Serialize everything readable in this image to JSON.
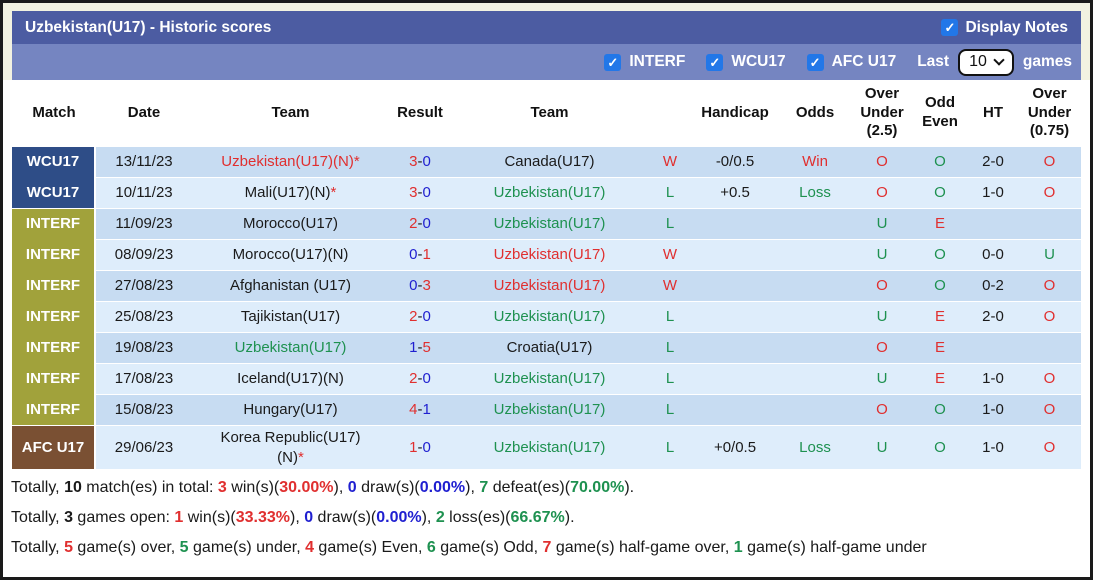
{
  "glyphs": {
    "check": "✓"
  },
  "colors": {
    "wcu17_bg": "#2e4d87",
    "interf_bg": "#a1a23b",
    "afc_bg": "#7a5033",
    "title_bar_bg": "#4c5ca2",
    "filter_bar_bg": "#7585c1",
    "row_dark": "#c7dcf2",
    "row_light": "#deedfb",
    "red": "#e02f2f",
    "green": "#1e9150",
    "blue": "#1f1fd0"
  },
  "title_bar": {
    "title": "Uzbekistan(U17) - Historic scores",
    "display_notes_label": "Display Notes",
    "display_notes_checked": true
  },
  "filter_bar": {
    "filters": [
      {
        "label": "INTERF",
        "checked": true
      },
      {
        "label": "WCU17",
        "checked": true
      },
      {
        "label": "AFC U17",
        "checked": true
      }
    ],
    "last_label": "Last",
    "games_count": "10",
    "games_label": "games"
  },
  "table": {
    "headers": [
      "Match",
      "Date",
      "Team",
      "Result",
      "Team",
      "",
      "Handicap",
      "Odds",
      "Over Under (2.5)",
      "Odd Even",
      "HT",
      "Over Under (0.75)"
    ],
    "rows": [
      {
        "competition": "WCU17",
        "competition_color": "#2e4d87",
        "group_start": true,
        "shade": "dark",
        "date": "13/11/23",
        "home": {
          "lines": [
            "Uzbekistan(U17)(N)"
          ],
          "color": "red",
          "star": true
        },
        "result": {
          "home": "3",
          "away": "0",
          "home_color": "red",
          "away_color": "blue"
        },
        "away": {
          "lines": [
            "Canada(U17)"
          ],
          "color": "black",
          "star": false
        },
        "wl": {
          "t": "W",
          "color": "red"
        },
        "handicap": "-0/0.5",
        "odds": {
          "t": "Win",
          "color": "red"
        },
        "over_under_25": {
          "t": "O",
          "color": "red"
        },
        "odd_even": {
          "t": "O",
          "color": "green"
        },
        "ht": "2-0",
        "over_under_075": {
          "t": "O",
          "color": "red"
        }
      },
      {
        "competition": "WCU17",
        "competition_color": "#2e4d87",
        "group_start": false,
        "shade": "light",
        "date": "10/11/23",
        "home": {
          "lines": [
            "Mali(U17)(N)"
          ],
          "color": "black",
          "star": true
        },
        "result": {
          "home": "3",
          "away": "0",
          "home_color": "red",
          "away_color": "blue"
        },
        "away": {
          "lines": [
            "Uzbekistan(U17)"
          ],
          "color": "green",
          "star": false
        },
        "wl": {
          "t": "L",
          "color": "green"
        },
        "handicap": "+0.5",
        "odds": {
          "t": "Loss",
          "color": "green"
        },
        "over_under_25": {
          "t": "O",
          "color": "red"
        },
        "odd_even": {
          "t": "O",
          "color": "green"
        },
        "ht": "1-0",
        "over_under_075": {
          "t": "O",
          "color": "red"
        }
      },
      {
        "competition": "INTERF",
        "competition_color": "#a1a23b",
        "group_start": true,
        "shade": "dark",
        "date": "11/09/23",
        "home": {
          "lines": [
            "Morocco(U17)"
          ],
          "color": "black",
          "star": false
        },
        "result": {
          "home": "2",
          "away": "0",
          "home_color": "red",
          "away_color": "blue"
        },
        "away": {
          "lines": [
            "Uzbekistan(U17)"
          ],
          "color": "green",
          "star": false
        },
        "wl": {
          "t": "L",
          "color": "green"
        },
        "handicap": "",
        "odds": {
          "t": "",
          "color": "black"
        },
        "over_under_25": {
          "t": "U",
          "color": "green"
        },
        "odd_even": {
          "t": "E",
          "color": "red"
        },
        "ht": "",
        "over_under_075": {
          "t": "",
          "color": "black"
        }
      },
      {
        "competition": "INTERF",
        "competition_color": "#a1a23b",
        "group_start": false,
        "shade": "light",
        "date": "08/09/23",
        "home": {
          "lines": [
            "Morocco(U17)(N)"
          ],
          "color": "black",
          "star": false
        },
        "result": {
          "home": "0",
          "away": "1",
          "home_color": "blue",
          "away_color": "red"
        },
        "away": {
          "lines": [
            "Uzbekistan(U17)"
          ],
          "color": "red",
          "star": false
        },
        "wl": {
          "t": "W",
          "color": "red"
        },
        "handicap": "",
        "odds": {
          "t": "",
          "color": "black"
        },
        "over_under_25": {
          "t": "U",
          "color": "green"
        },
        "odd_even": {
          "t": "O",
          "color": "green"
        },
        "ht": "0-0",
        "over_under_075": {
          "t": "U",
          "color": "green"
        }
      },
      {
        "competition": "INTERF",
        "competition_color": "#a1a23b",
        "group_start": false,
        "shade": "dark",
        "date": "27/08/23",
        "home": {
          "lines": [
            "Afghanistan (U17)"
          ],
          "color": "black",
          "star": false
        },
        "result": {
          "home": "0",
          "away": "3",
          "home_color": "blue",
          "away_color": "red"
        },
        "away": {
          "lines": [
            "Uzbekistan(U17)"
          ],
          "color": "red",
          "star": false
        },
        "wl": {
          "t": "W",
          "color": "red"
        },
        "handicap": "",
        "odds": {
          "t": "",
          "color": "black"
        },
        "over_under_25": {
          "t": "O",
          "color": "red"
        },
        "odd_even": {
          "t": "O",
          "color": "green"
        },
        "ht": "0-2",
        "over_under_075": {
          "t": "O",
          "color": "red"
        }
      },
      {
        "competition": "INTERF",
        "competition_color": "#a1a23b",
        "group_start": false,
        "shade": "light",
        "date": "25/08/23",
        "home": {
          "lines": [
            "Tajikistan(U17)"
          ],
          "color": "black",
          "star": false
        },
        "result": {
          "home": "2",
          "away": "0",
          "home_color": "red",
          "away_color": "blue"
        },
        "away": {
          "lines": [
            "Uzbekistan(U17)"
          ],
          "color": "green",
          "star": false
        },
        "wl": {
          "t": "L",
          "color": "green"
        },
        "handicap": "",
        "odds": {
          "t": "",
          "color": "black"
        },
        "over_under_25": {
          "t": "U",
          "color": "green"
        },
        "odd_even": {
          "t": "E",
          "color": "red"
        },
        "ht": "2-0",
        "over_under_075": {
          "t": "O",
          "color": "red"
        }
      },
      {
        "competition": "INTERF",
        "competition_color": "#a1a23b",
        "group_start": false,
        "shade": "dark",
        "date": "19/08/23",
        "home": {
          "lines": [
            "Uzbekistan(U17)"
          ],
          "color": "green",
          "star": false
        },
        "result": {
          "home": "1",
          "away": "5",
          "home_color": "blue",
          "away_color": "red"
        },
        "away": {
          "lines": [
            "Croatia(U17)"
          ],
          "color": "black",
          "star": false
        },
        "wl": {
          "t": "L",
          "color": "green"
        },
        "handicap": "",
        "odds": {
          "t": "",
          "color": "black"
        },
        "over_under_25": {
          "t": "O",
          "color": "red"
        },
        "odd_even": {
          "t": "E",
          "color": "red"
        },
        "ht": "",
        "over_under_075": {
          "t": "",
          "color": "black"
        }
      },
      {
        "competition": "INTERF",
        "competition_color": "#a1a23b",
        "group_start": false,
        "shade": "light",
        "date": "17/08/23",
        "home": {
          "lines": [
            "Iceland(U17)(N)"
          ],
          "color": "black",
          "star": false
        },
        "result": {
          "home": "2",
          "away": "0",
          "home_color": "red",
          "away_color": "blue"
        },
        "away": {
          "lines": [
            "Uzbekistan(U17)"
          ],
          "color": "green",
          "star": false
        },
        "wl": {
          "t": "L",
          "color": "green"
        },
        "handicap": "",
        "odds": {
          "t": "",
          "color": "black"
        },
        "over_under_25": {
          "t": "U",
          "color": "green"
        },
        "odd_even": {
          "t": "E",
          "color": "red"
        },
        "ht": "1-0",
        "over_under_075": {
          "t": "O",
          "color": "red"
        }
      },
      {
        "competition": "INTERF",
        "competition_color": "#a1a23b",
        "group_start": false,
        "shade": "dark",
        "date": "15/08/23",
        "home": {
          "lines": [
            "Hungary(U17)"
          ],
          "color": "black",
          "star": false
        },
        "result": {
          "home": "4",
          "away": "1",
          "home_color": "red",
          "away_color": "blue"
        },
        "away": {
          "lines": [
            "Uzbekistan(U17)"
          ],
          "color": "green",
          "star": false
        },
        "wl": {
          "t": "L",
          "color": "green"
        },
        "handicap": "",
        "odds": {
          "t": "",
          "color": "black"
        },
        "over_under_25": {
          "t": "O",
          "color": "red"
        },
        "odd_even": {
          "t": "O",
          "color": "green"
        },
        "ht": "1-0",
        "over_under_075": {
          "t": "O",
          "color": "red"
        }
      },
      {
        "competition": "AFC U17",
        "competition_color": "#7a5033",
        "group_start": true,
        "shade": "light",
        "date": "29/06/23",
        "home": {
          "lines": [
            "Korea Republic(U17)",
            "(N)"
          ],
          "color": "black",
          "star": true
        },
        "result": {
          "home": "1",
          "away": "0",
          "home_color": "red",
          "away_color": "blue"
        },
        "away": {
          "lines": [
            "Uzbekistan(U17)"
          ],
          "color": "green",
          "star": false
        },
        "wl": {
          "t": "L",
          "color": "green"
        },
        "handicap": "+0/0.5",
        "odds": {
          "t": "Loss",
          "color": "green"
        },
        "over_under_25": {
          "t": "U",
          "color": "green"
        },
        "odd_even": {
          "t": "O",
          "color": "green"
        },
        "ht": "1-0",
        "over_under_075": {
          "t": "O",
          "color": "red"
        }
      }
    ]
  },
  "footer": {
    "lines": [
      [
        {
          "t": "Totally, "
        },
        {
          "t": "10",
          "b": true
        },
        {
          "t": " match(es) in total: "
        },
        {
          "t": "3",
          "b": true,
          "c": "red"
        },
        {
          "t": " win(s)("
        },
        {
          "t": "30.00%",
          "b": true,
          "c": "red"
        },
        {
          "t": "), "
        },
        {
          "t": "0",
          "b": true,
          "c": "blue"
        },
        {
          "t": " draw(s)("
        },
        {
          "t": "0.00%",
          "b": true,
          "c": "blue"
        },
        {
          "t": "), "
        },
        {
          "t": "7",
          "b": true,
          "c": "green"
        },
        {
          "t": " defeat(es)("
        },
        {
          "t": "70.00%",
          "b": true,
          "c": "green"
        },
        {
          "t": ")."
        }
      ],
      [
        {
          "t": "Totally, "
        },
        {
          "t": "3",
          "b": true
        },
        {
          "t": " games open: "
        },
        {
          "t": "1",
          "b": true,
          "c": "red"
        },
        {
          "t": " win(s)("
        },
        {
          "t": "33.33%",
          "b": true,
          "c": "red"
        },
        {
          "t": "), "
        },
        {
          "t": "0",
          "b": true,
          "c": "blue"
        },
        {
          "t": " draw(s)("
        },
        {
          "t": "0.00%",
          "b": true,
          "c": "blue"
        },
        {
          "t": "), "
        },
        {
          "t": "2",
          "b": true,
          "c": "green"
        },
        {
          "t": " loss(es)("
        },
        {
          "t": "66.67%",
          "b": true,
          "c": "green"
        },
        {
          "t": ")."
        }
      ],
      [
        {
          "t": "Totally, "
        },
        {
          "t": "5",
          "b": true,
          "c": "red"
        },
        {
          "t": " game(s) over, "
        },
        {
          "t": "5",
          "b": true,
          "c": "green"
        },
        {
          "t": " game(s) under, "
        },
        {
          "t": "4",
          "b": true,
          "c": "red"
        },
        {
          "t": " game(s) Even, "
        },
        {
          "t": "6",
          "b": true,
          "c": "green"
        },
        {
          "t": " game(s) Odd, "
        },
        {
          "t": "7",
          "b": true,
          "c": "red"
        },
        {
          "t": " game(s) half-game over, "
        },
        {
          "t": "1",
          "b": true,
          "c": "green"
        },
        {
          "t": " game(s) half-game under"
        }
      ]
    ]
  }
}
